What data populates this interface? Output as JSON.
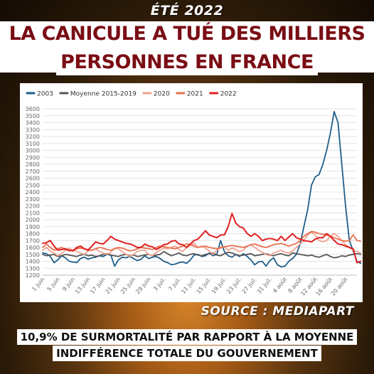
{
  "header": {
    "kicker": "ÉTÉ 2022",
    "headline_line1": "LA CANICULE A TUÉ DES MILLIERS DE",
    "headline_line2": "PERSONNES EN FRANCE"
  },
  "source_label": "SOURCE : MEDIAPART",
  "footer": {
    "line1": "10,9% DE SURMORTALITÉ PAR RAPPORT À LA MOYENNE",
    "line2": "INDIFFÉRENCE TOTALE DU GOUVERNEMENT"
  },
  "chart_data": {
    "type": "line",
    "title": "",
    "xlabel": "",
    "ylabel": "",
    "ylim": [
      1200,
      3600
    ],
    "yticks": [
      1200,
      1300,
      1400,
      1500,
      1600,
      1700,
      1800,
      1900,
      2000,
      2100,
      2200,
      2300,
      2400,
      2500,
      2600,
      2700,
      2800,
      2900,
      3000,
      3100,
      3200,
      3300,
      3400,
      3500,
      3600
    ],
    "grid": true,
    "legend_position": "top-left",
    "x_tick_labels": [
      "1 juin",
      "5 juin",
      "9 juin",
      "13 juin",
      "17 juin",
      "21 juin",
      "25 juin",
      "29 juin",
      "3 juil.",
      "7 juil.",
      "11 juil.",
      "15 juil.",
      "19 juil.",
      "23 juil.",
      "27 juil.",
      "31 juil.",
      "4 août",
      "8 août",
      "12 août",
      "16 août",
      "20 août"
    ],
    "x_day_count": 84,
    "series": [
      {
        "name": "2003",
        "color": "#1f5f8b",
        "values": [
          1520,
          1510,
          1470,
          1380,
          1420,
          1480,
          1450,
          1400,
          1390,
          1380,
          1440,
          1460,
          1430,
          1450,
          1460,
          1480,
          1470,
          1500,
          1490,
          1330,
          1420,
          1460,
          1450,
          1470,
          1440,
          1410,
          1430,
          1480,
          1440,
          1460,
          1470,
          1440,
          1400,
          1380,
          1350,
          1360,
          1380,
          1390,
          1370,
          1420,
          1490,
          1500,
          1470,
          1480,
          1520,
          1480,
          1500,
          1700,
          1540,
          1480,
          1460,
          1500,
          1470,
          1510,
          1470,
          1420,
          1350,
          1390,
          1400,
          1330,
          1410,
          1450,
          1350,
          1320,
          1330,
          1400,
          1440,
          1500,
          1650,
          1900,
          2150,
          2500,
          2620,
          2650,
          2800,
          3000,
          3250,
          3560,
          3400,
          2800,
          2200,
          1700,
          1550,
          1400,
          1370
        ]
      },
      {
        "name": "Moyenne 2015-2019",
        "color": "#555555",
        "values": [
          1500,
          1480,
          1490,
          1500,
          1470,
          1480,
          1500,
          1490,
          1480,
          1470,
          1490,
          1500,
          1480,
          1490,
          1470,
          1480,
          1500,
          1510,
          1490,
          1480,
          1470,
          1490,
          1500,
          1480,
          1490,
          1470,
          1480,
          1490,
          1500,
          1480,
          1490,
          1500,
          1540,
          1510,
          1480,
          1500,
          1520,
          1490,
          1480,
          1500,
          1510,
          1490,
          1480,
          1500,
          1510,
          1520,
          1490,
          1480,
          1510,
          1530,
          1520,
          1500,
          1480,
          1490,
          1500,
          1510,
          1480,
          1490,
          1500,
          1510,
          1490,
          1480,
          1500,
          1510,
          1490,
          1480,
          1520,
          1510,
          1500,
          1490,
          1480,
          1490,
          1470,
          1460,
          1480,
          1500,
          1470,
          1450,
          1460,
          1480,
          1470,
          1490,
          1500,
          1510,
          1500
        ]
      },
      {
        "name": "2020",
        "color": "#f0a28e",
        "values": [
          1560,
          1600,
          1550,
          1520,
          1480,
          1510,
          1560,
          1590,
          1560,
          1540,
          1520,
          1500,
          1550,
          1560,
          1580,
          1540,
          1520,
          1500,
          1530,
          1590,
          1580,
          1540,
          1500,
          1470,
          1500,
          1540,
          1560,
          1560,
          1500,
          1480,
          1530,
          1560,
          1590,
          1580,
          1600,
          1620,
          1570,
          1540,
          1600,
          1630,
          1660,
          1600,
          1620,
          1590,
          1550,
          1500,
          1560,
          1590,
          1610,
          1560,
          1590,
          1570,
          1540,
          1560,
          1620,
          1640,
          1600,
          1560,
          1530,
          1500,
          1480,
          1520,
          1540,
          1560,
          1530,
          1520,
          1550,
          1600,
          1650,
          1700,
          1780,
          1820,
          1780,
          1700,
          1680,
          1700,
          1760,
          1800,
          1760,
          1700,
          1640,
          1600,
          1560,
          1540,
          1520
        ]
      },
      {
        "name": "2021",
        "color": "#e8704e",
        "values": [
          1600,
          1650,
          1600,
          1560,
          1580,
          1600,
          1570,
          1550,
          1560,
          1580,
          1590,
          1580,
          1570,
          1560,
          1580,
          1600,
          1590,
          1570,
          1560,
          1580,
          1600,
          1590,
          1570,
          1550,
          1560,
          1580,
          1600,
          1590,
          1580,
          1570,
          1600,
          1620,
          1610,
          1600,
          1590,
          1580,
          1600,
          1620,
          1650,
          1640,
          1620,
          1600,
          1610,
          1620,
          1600,
          1590,
          1580,
          1600,
          1610,
          1620,
          1630,
          1620,
          1610,
          1600,
          1620,
          1640,
          1650,
          1630,
          1610,
          1600,
          1620,
          1640,
          1650,
          1660,
          1640,
          1620,
          1640,
          1660,
          1700,
          1760,
          1800,
          1830,
          1820,
          1800,
          1790,
          1780,
          1760,
          1740,
          1720,
          1700,
          1690,
          1700,
          1780,
          1700,
          1690
        ]
      },
      {
        "name": "2022",
        "color": "#e02020",
        "values": [
          1660,
          1670,
          1700,
          1620,
          1560,
          1570,
          1580,
          1560,
          1550,
          1600,
          1620,
          1580,
          1560,
          1620,
          1680,
          1660,
          1650,
          1700,
          1760,
          1720,
          1700,
          1680,
          1660,
          1650,
          1630,
          1600,
          1600,
          1650,
          1620,
          1610,
          1570,
          1600,
          1640,
          1650,
          1690,
          1700,
          1650,
          1640,
          1600,
          1650,
          1700,
          1720,
          1780,
          1840,
          1780,
          1760,
          1740,
          1780,
          1780,
          1900,
          2090,
          1950,
          1900,
          1880,
          1800,
          1760,
          1800,
          1760,
          1700,
          1720,
          1730,
          1720,
          1700,
          1760,
          1700,
          1750,
          1800,
          1740,
          1720,
          1700,
          1690,
          1680,
          1720,
          1740,
          1740,
          1800,
          1760,
          1700,
          1650,
          1640,
          1620,
          1600,
          1580,
          1380,
          1400
        ]
      }
    ]
  }
}
